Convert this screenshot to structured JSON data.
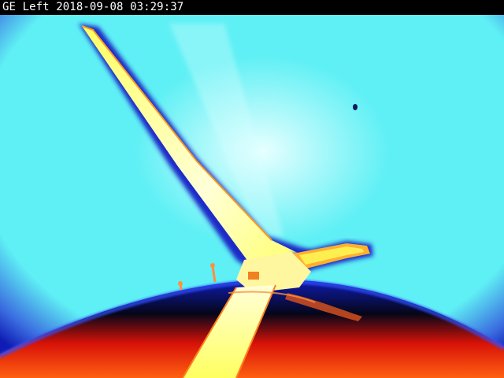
{
  "overlay": {
    "camera_label": "GE Left",
    "date": "2018-09-08",
    "time": "03:29:37"
  },
  "palette": {
    "sky": "#5ff0f5",
    "sky_glow": "#e8ffff",
    "vignette": "#3a6be0",
    "deep_blue": "#0f1cb4",
    "dark": "#050618",
    "red": "#d81208",
    "orange": "#ff6010",
    "yellow": "#ffff60",
    "hot_white": "#ffffd8"
  },
  "scene": {
    "subject": "wind-turbine-blades",
    "view": "thermal-false-color"
  }
}
